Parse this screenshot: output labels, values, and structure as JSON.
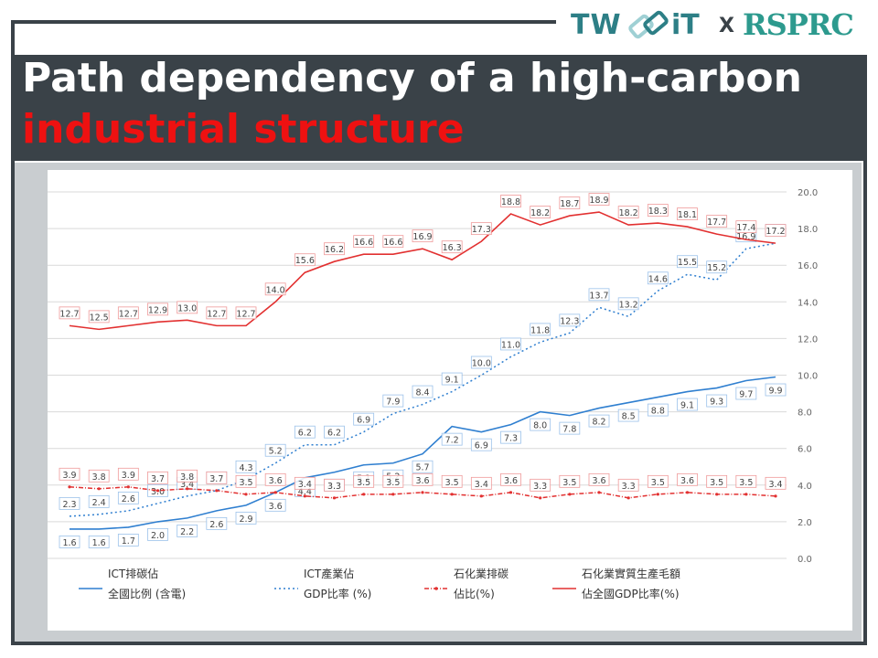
{
  "logo": {
    "left": "TW",
    "right": "iT",
    "separator": "X",
    "partner": "RSPRC"
  },
  "title": {
    "line1": "Path dependency of a high-carbon",
    "line2": "industrial structure"
  },
  "chart_data": {
    "type": "line",
    "ylim": [
      0,
      20
    ],
    "y_ticks": [
      "0.0",
      "2.0",
      "4.0",
      "6.0",
      "8.0",
      "10.0",
      "12.0",
      "14.0",
      "16.0",
      "18.0",
      "20.0"
    ],
    "grid": true,
    "legend_position": "bottom",
    "series": [
      {
        "name": "ICT排碳佔全國比例 (含電)",
        "legend_lines": [
          "ICT排碳佔",
          "全國比例 (含電)"
        ],
        "color": "#2f7fd0",
        "style": "solid",
        "values": [
          1.6,
          1.6,
          1.7,
          2.0,
          2.2,
          2.6,
          2.9,
          3.6,
          4.4,
          4.7,
          5.1,
          5.2,
          5.7,
          7.2,
          6.9,
          7.3,
          8.0,
          7.8,
          8.2,
          8.5,
          8.8,
          9.1,
          9.3,
          9.7,
          9.9
        ]
      },
      {
        "name": "ICT產業佔GDP比率 (%)",
        "legend_lines": [
          "ICT產業佔",
          "GDP比率 (%)"
        ],
        "color": "#2f7fd0",
        "style": "dotted",
        "values": [
          2.3,
          2.4,
          2.6,
          3.0,
          3.4,
          3.7,
          4.3,
          5.2,
          6.2,
          6.2,
          6.9,
          7.9,
          8.4,
          9.1,
          10.0,
          11.0,
          11.8,
          12.3,
          13.7,
          13.2,
          14.6,
          15.5,
          15.2,
          16.9,
          17.2
        ]
      },
      {
        "name": "石化業排碳佔比(%)",
        "legend_lines": [
          "石化業排碳",
          "佔比(%)"
        ],
        "color": "#e23030",
        "style": "dashdot",
        "values": [
          3.9,
          3.8,
          3.9,
          3.7,
          3.8,
          3.7,
          3.5,
          3.6,
          3.4,
          3.3,
          3.5,
          3.5,
          3.6,
          3.5,
          3.4,
          3.6,
          3.3,
          3.5,
          3.6,
          3.3,
          3.5,
          3.6,
          3.5,
          3.5,
          3.4
        ]
      },
      {
        "name": "石化業實質生產毛額佔全國GDP比率(%)",
        "legend_lines": [
          "石化業實質生產毛額",
          "佔全國GDP比率(%)"
        ],
        "color": "#e23030",
        "style": "solid",
        "values": [
          12.7,
          12.5,
          12.7,
          12.9,
          13.0,
          12.7,
          12.7,
          14.0,
          15.6,
          16.2,
          16.6,
          16.6,
          16.9,
          16.3,
          17.3,
          18.8,
          18.2,
          18.7,
          18.9,
          18.2,
          18.3,
          18.1,
          17.7,
          17.4,
          17.2
        ]
      }
    ]
  }
}
